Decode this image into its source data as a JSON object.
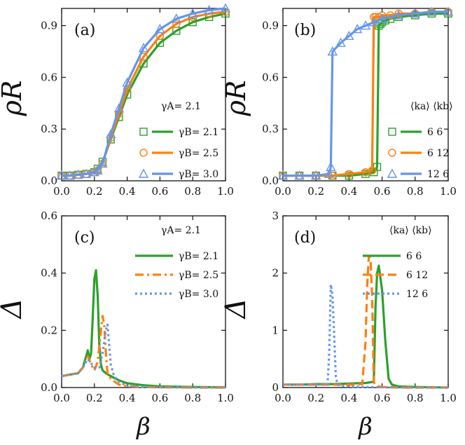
{
  "colors": {
    "green": "#2ca02c",
    "orange": "#ff7f0e",
    "blue": "#6495ed",
    "axis": "#111111"
  },
  "chart_data": [
    {
      "id": "a",
      "type": "line",
      "panel_label": "(a)",
      "xlabel": "",
      "ylabel": "ρR",
      "xlim": [
        0,
        1
      ],
      "ylim": [
        0,
        1
      ],
      "xticks": [
        "0.0",
        "0.2",
        "0.4",
        "0.6",
        "0.8",
        "1.0"
      ],
      "yticks": [
        "0.0",
        "0.3",
        "0.6",
        "0.9"
      ],
      "legend_title": "γA= 2.1",
      "series": [
        {
          "name": "γB= 2.1",
          "color": "green",
          "line": "solid",
          "marker": "square",
          "x": [
            0,
            0.05,
            0.1,
            0.15,
            0.2,
            0.22,
            0.25,
            0.3,
            0.35,
            0.4,
            0.5,
            0.6,
            0.7,
            0.8,
            0.9,
            1.0
          ],
          "y": [
            0.03,
            0.03,
            0.035,
            0.04,
            0.05,
            0.07,
            0.11,
            0.24,
            0.37,
            0.5,
            0.68,
            0.8,
            0.87,
            0.92,
            0.95,
            0.97
          ]
        },
        {
          "name": "γB= 2.5",
          "color": "orange",
          "line": "solid",
          "marker": "circle",
          "x": [
            0,
            0.05,
            0.1,
            0.15,
            0.2,
            0.22,
            0.25,
            0.3,
            0.35,
            0.4,
            0.5,
            0.6,
            0.7,
            0.8,
            0.9,
            1.0
          ],
          "y": [
            0.03,
            0.03,
            0.035,
            0.04,
            0.05,
            0.06,
            0.1,
            0.25,
            0.39,
            0.53,
            0.72,
            0.84,
            0.91,
            0.95,
            0.97,
            0.98
          ]
        },
        {
          "name": "γB= 3.0",
          "color": "blue",
          "line": "solid",
          "marker": "triangle",
          "x": [
            0,
            0.05,
            0.1,
            0.15,
            0.2,
            0.22,
            0.25,
            0.3,
            0.35,
            0.4,
            0.5,
            0.6,
            0.7,
            0.8,
            0.9,
            1.0
          ],
          "y": [
            0.03,
            0.03,
            0.035,
            0.04,
            0.05,
            0.06,
            0.1,
            0.27,
            0.42,
            0.57,
            0.77,
            0.88,
            0.94,
            0.97,
            0.99,
            1.0
          ]
        }
      ]
    },
    {
      "id": "b",
      "type": "line",
      "panel_label": "(b)",
      "xlabel": "",
      "ylabel": "ρR",
      "xlim": [
        0,
        1
      ],
      "ylim": [
        0,
        1
      ],
      "xticks": [
        "0.0",
        "0.2",
        "0.4",
        "0.6",
        "0.8",
        "1.0"
      ],
      "yticks": [
        "0.0",
        "0.3",
        "0.6",
        "0.9"
      ],
      "legend_title": "⟨ka⟩ ⟨kb⟩",
      "series": [
        {
          "name": "6   6",
          "color": "green",
          "line": "solid",
          "marker": "square",
          "x": [
            0,
            0.1,
            0.2,
            0.3,
            0.4,
            0.5,
            0.55,
            0.57,
            0.58,
            0.59,
            0.6,
            0.62,
            0.65,
            0.7,
            0.8,
            0.9,
            1.0
          ],
          "y": [
            0.03,
            0.03,
            0.03,
            0.03,
            0.03,
            0.04,
            0.05,
            0.08,
            0.9,
            0.91,
            0.92,
            0.93,
            0.94,
            0.95,
            0.96,
            0.97,
            0.97
          ]
        },
        {
          "name": "6   12",
          "color": "orange",
          "line": "solid",
          "marker": "circle",
          "x": [
            0,
            0.1,
            0.2,
            0.3,
            0.4,
            0.5,
            0.54,
            0.55,
            0.56,
            0.58,
            0.6,
            0.65,
            0.7,
            0.8,
            0.9,
            1.0
          ],
          "y": [
            0.03,
            0.03,
            0.03,
            0.03,
            0.04,
            0.05,
            0.06,
            0.95,
            0.95,
            0.95,
            0.96,
            0.96,
            0.97,
            0.97,
            0.98,
            0.98
          ]
        },
        {
          "name": "12  6",
          "color": "blue",
          "line": "solid",
          "marker": "triangle",
          "x": [
            0,
            0.1,
            0.2,
            0.28,
            0.29,
            0.3,
            0.35,
            0.4,
            0.45,
            0.5,
            0.55,
            0.6,
            0.7,
            0.8,
            0.9,
            1.0
          ],
          "y": [
            0.03,
            0.03,
            0.03,
            0.04,
            0.08,
            0.75,
            0.8,
            0.84,
            0.88,
            0.9,
            0.92,
            0.94,
            0.96,
            0.97,
            0.98,
            0.98
          ]
        }
      ]
    },
    {
      "id": "c",
      "type": "line",
      "panel_label": "(c)",
      "xlabel": "β",
      "ylabel": "Δ",
      "xlim": [
        0,
        1
      ],
      "ylim": [
        0,
        0.6
      ],
      "xticks": [
        "0.0",
        "0.2",
        "0.4",
        "0.6",
        "0.8",
        "1.0"
      ],
      "yticks": [
        "0.0",
        "0.2",
        "0.4",
        "0.6"
      ],
      "legend_title": "γA= 2.1",
      "series": [
        {
          "name": "γB= 2.1",
          "color": "green",
          "line": "solid",
          "x": [
            0,
            0.05,
            0.1,
            0.13,
            0.15,
            0.16,
            0.17,
            0.18,
            0.19,
            0.2,
            0.21,
            0.22,
            0.23,
            0.24,
            0.25,
            0.27,
            0.3,
            0.35,
            0.4,
            0.5,
            0.6,
            0.8,
            1.0
          ],
          "y": [
            0.04,
            0.045,
            0.05,
            0.07,
            0.11,
            0.13,
            0.1,
            0.12,
            0.25,
            0.38,
            0.41,
            0.32,
            0.15,
            0.08,
            0.06,
            0.05,
            0.04,
            0.025,
            0.015,
            0.008,
            0.004,
            0.002,
            0.001
          ]
        },
        {
          "name": "γB= 2.5",
          "color": "orange",
          "line": "dashdot",
          "x": [
            0,
            0.05,
            0.1,
            0.13,
            0.16,
            0.18,
            0.2,
            0.22,
            0.24,
            0.25,
            0.26,
            0.27,
            0.28,
            0.3,
            0.35,
            0.4,
            0.5,
            0.6,
            0.8,
            1.0
          ],
          "y": [
            0.04,
            0.045,
            0.05,
            0.07,
            0.11,
            0.08,
            0.06,
            0.09,
            0.2,
            0.25,
            0.22,
            0.12,
            0.05,
            0.03,
            0.01,
            0.005,
            0.002,
            0.001,
            0.0,
            0.0
          ]
        },
        {
          "name": "γB= 3.0",
          "color": "blue",
          "line": "dotted",
          "x": [
            0,
            0.05,
            0.1,
            0.13,
            0.16,
            0.2,
            0.23,
            0.25,
            0.27,
            0.28,
            0.29,
            0.3,
            0.32,
            0.35,
            0.4,
            0.5,
            0.6,
            0.8,
            1.0
          ],
          "y": [
            0.04,
            0.045,
            0.05,
            0.07,
            0.1,
            0.07,
            0.07,
            0.12,
            0.2,
            0.22,
            0.15,
            0.08,
            0.04,
            0.02,
            0.005,
            0.002,
            0.001,
            0.0,
            0.0
          ]
        }
      ]
    },
    {
      "id": "d",
      "type": "line",
      "panel_label": "(d)",
      "xlabel": "β",
      "ylabel": "Δ",
      "xlim": [
        0,
        1
      ],
      "ylim": [
        0,
        3
      ],
      "xticks": [
        "0.0",
        "0.2",
        "0.4",
        "0.6",
        "0.8",
        "1.0"
      ],
      "yticks": [
        "0",
        "1",
        "2",
        "3"
      ],
      "legend_title": "⟨ka⟩ ⟨kb⟩",
      "series": [
        {
          "name": "6   6",
          "color": "green",
          "line": "solid",
          "x": [
            0,
            0.1,
            0.2,
            0.3,
            0.4,
            0.5,
            0.55,
            0.56,
            0.57,
            0.58,
            0.6,
            0.62,
            0.64,
            0.66,
            0.7,
            0.8,
            1.0
          ],
          "y": [
            0.05,
            0.05,
            0.06,
            0.06,
            0.07,
            0.08,
            0.1,
            1.4,
            2.0,
            2.13,
            1.7,
            0.8,
            0.15,
            0.05,
            0.02,
            0.01,
            0.0
          ]
        },
        {
          "name": "6   12",
          "color": "orange",
          "line": "dashed",
          "x": [
            0,
            0.1,
            0.2,
            0.3,
            0.4,
            0.48,
            0.5,
            0.51,
            0.52,
            0.53,
            0.54,
            0.55,
            0.56,
            0.58,
            0.6,
            0.7,
            0.8,
            1.0
          ],
          "y": [
            0.05,
            0.05,
            0.05,
            0.05,
            0.05,
            0.06,
            0.8,
            1.8,
            2.3,
            2.25,
            1.6,
            0.1,
            0.03,
            0.02,
            0.01,
            0.0,
            0.0,
            0.0
          ]
        },
        {
          "name": "12  6",
          "color": "blue",
          "line": "dotted",
          "x": [
            0,
            0.1,
            0.2,
            0.27,
            0.28,
            0.29,
            0.3,
            0.31,
            0.32,
            0.33,
            0.35,
            0.4,
            0.5,
            0.6,
            0.8,
            1.0
          ],
          "y": [
            0.05,
            0.05,
            0.05,
            0.05,
            0.6,
            1.8,
            1.6,
            0.9,
            0.2,
            0.05,
            0.03,
            0.02,
            0.01,
            0.005,
            0.0,
            0.0
          ]
        }
      ]
    }
  ]
}
